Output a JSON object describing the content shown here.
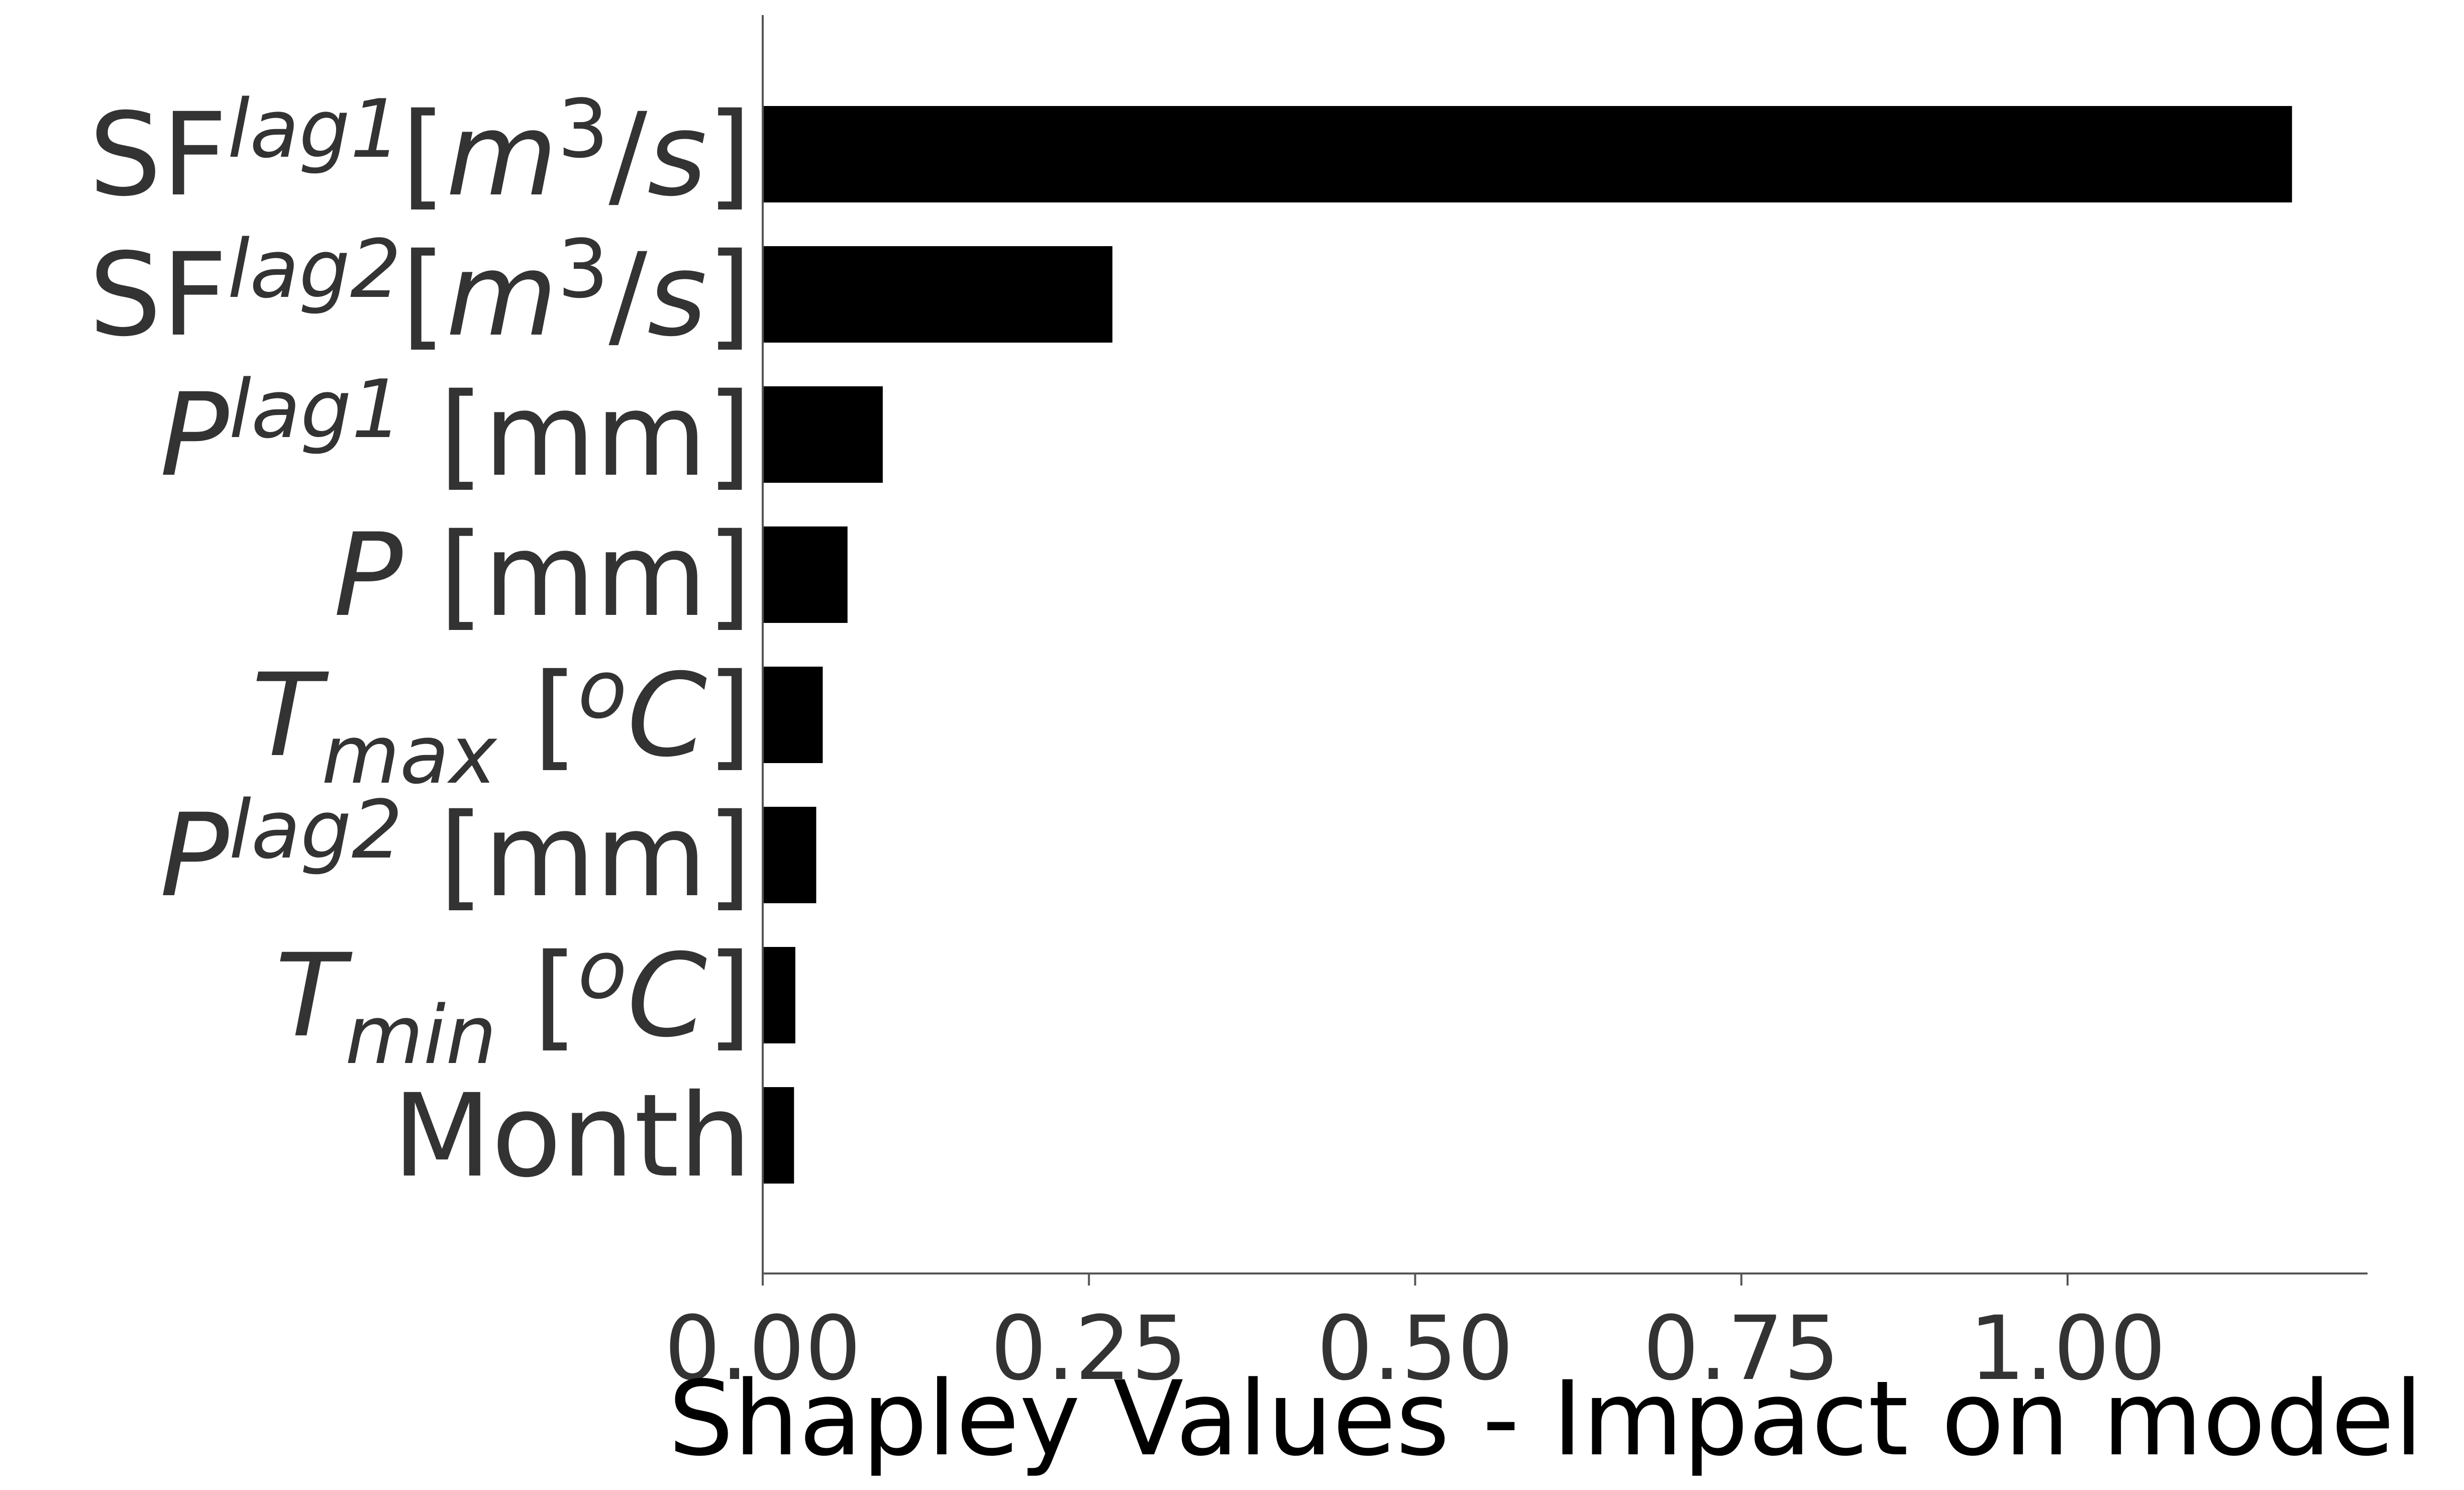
{
  "chart_data": {
    "type": "bar",
    "orientation": "horizontal",
    "xlabel": "Shapley Values - Impact on model",
    "ylabel": "",
    "xlim": [
      0,
      1.23
    ],
    "xticks": [
      0.0,
      0.25,
      0.5,
      0.75,
      1.0
    ],
    "xtick_labels": [
      "0.00",
      "0.25",
      "0.50",
      "0.75",
      "1.00"
    ],
    "bar_color": "#000000",
    "grid": false,
    "categories": [
      {
        "text": "SF^lag1[m^3/s]",
        "parts": [
          {
            "t": "SF",
            "s": "n"
          },
          {
            "t": "lag1",
            "s": "sup",
            "i": true
          },
          {
            "t": "[",
            "s": "n"
          },
          {
            "t": "m",
            "s": "n",
            "i": true
          },
          {
            "t": "3",
            "s": "sup"
          },
          {
            "t": "/",
            "s": "n"
          },
          {
            "t": "s",
            "s": "n",
            "i": true
          },
          {
            "t": "]",
            "s": "n"
          }
        ]
      },
      {
        "text": "SF^lag2[m^3/s]",
        "parts": [
          {
            "t": "SF",
            "s": "n"
          },
          {
            "t": "lag2",
            "s": "sup",
            "i": true
          },
          {
            "t": "[",
            "s": "n"
          },
          {
            "t": "m",
            "s": "n",
            "i": true
          },
          {
            "t": "3",
            "s": "sup"
          },
          {
            "t": "/",
            "s": "n"
          },
          {
            "t": "s",
            "s": "n",
            "i": true
          },
          {
            "t": "]",
            "s": "n"
          }
        ]
      },
      {
        "text": "P^lag1 [mm]",
        "parts": [
          {
            "t": "P",
            "s": "n",
            "i": true
          },
          {
            "t": "lag1",
            "s": "sup",
            "i": true
          },
          {
            "t": " [mm]",
            "s": "n"
          }
        ]
      },
      {
        "text": "P [mm]",
        "parts": [
          {
            "t": "P",
            "s": "n",
            "i": true
          },
          {
            "t": " [mm]",
            "s": "n"
          }
        ]
      },
      {
        "text": "T_max [oC]",
        "parts": [
          {
            "t": "T",
            "s": "n",
            "i": true
          },
          {
            "t": "max",
            "s": "sub",
            "i": true
          },
          {
            "t": " [",
            "s": "n"
          },
          {
            "t": "o",
            "s": "sup",
            "i": true
          },
          {
            "t": "C",
            "s": "n",
            "i": true
          },
          {
            "t": "]",
            "s": "n"
          }
        ]
      },
      {
        "text": "P^lag2 [mm]",
        "parts": [
          {
            "t": "P",
            "s": "n",
            "i": true
          },
          {
            "t": "lag2",
            "s": "sup",
            "i": true
          },
          {
            "t": " [mm]",
            "s": "n"
          }
        ]
      },
      {
        "text": "T_min [oC]",
        "parts": [
          {
            "t": "T",
            "s": "n",
            "i": true
          },
          {
            "t": "min",
            "s": "sub",
            "i": true
          },
          {
            "t": " [",
            "s": "n"
          },
          {
            "t": "o",
            "s": "sup",
            "i": true
          },
          {
            "t": "C",
            "s": "n",
            "i": true
          },
          {
            "t": "]",
            "s": "n"
          }
        ]
      },
      {
        "text": "Month",
        "parts": [
          {
            "t": "Month",
            "s": "n"
          }
        ]
      }
    ],
    "values": [
      1.172,
      0.268,
      0.092,
      0.065,
      0.046,
      0.041,
      0.025,
      0.024
    ]
  }
}
